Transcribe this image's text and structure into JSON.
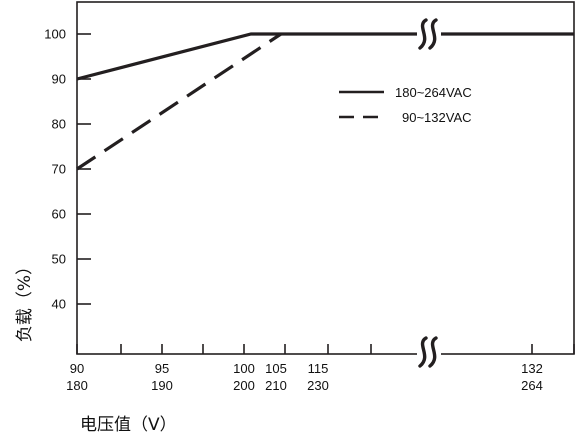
{
  "chart_data": {
    "type": "line",
    "xlabel": "电压值（V）",
    "ylabel": "负载（%）",
    "ylim": [
      30,
      105
    ],
    "grid": false,
    "legend_position": "top-right",
    "axis_break": "x-axis between 115/230 and 132/264",
    "y_ticks": [
      40,
      50,
      60,
      70,
      80,
      90,
      100
    ],
    "x_tick_labels": [
      {
        "top": "90",
        "bottom": "180"
      },
      {
        "top": "95",
        "bottom": "190"
      },
      {
        "top": "100",
        "bottom": "200"
      },
      {
        "top": "105",
        "bottom": "210"
      },
      {
        "top": "115",
        "bottom": "230"
      },
      {
        "top": "132",
        "bottom": "264"
      }
    ],
    "break_symbol": "≈",
    "series": [
      {
        "name": "180~264VAC",
        "style": "solid",
        "color": "#231f20",
        "x_unit": "VAC (lower axis row)",
        "points": [
          [
            180,
            90
          ],
          [
            200,
            100
          ],
          [
            264,
            100
          ]
        ]
      },
      {
        "name": "90~132VAC",
        "style": "dashed",
        "color": "#231f20",
        "x_unit": "VAC (upper axis row)",
        "points": [
          [
            90,
            70
          ],
          [
            105,
            100
          ],
          [
            132,
            100
          ]
        ]
      }
    ]
  }
}
